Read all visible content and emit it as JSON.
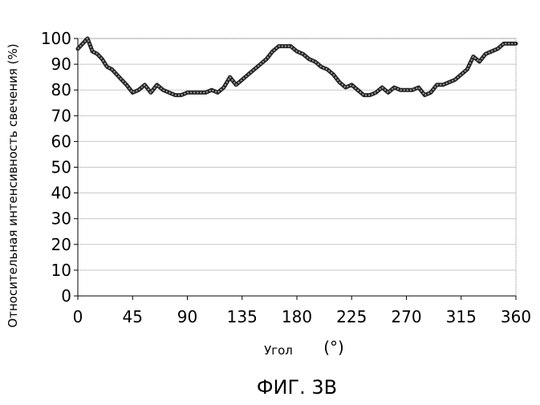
{
  "chart_data": {
    "type": "line",
    "ylabel": "Относительная интенсивность свечения (%)",
    "xlabel": "Угол",
    "xunit": "(°)",
    "caption": "ФИГ. 3B",
    "xlim": [
      0,
      360
    ],
    "ylim": [
      0,
      100
    ],
    "xticks": [
      "0",
      "45",
      "90",
      "135",
      "180",
      "225",
      "270",
      "315",
      "360"
    ],
    "yticks": [
      "0",
      "10",
      "20",
      "30",
      "40",
      "50",
      "60",
      "70",
      "80",
      "90",
      "100"
    ],
    "grid": true,
    "series": [
      {
        "x": [
          0,
          4,
          8,
          12,
          16,
          20,
          24,
          28,
          32,
          36,
          40,
          45,
          50,
          55,
          60,
          65,
          70,
          75,
          80,
          85,
          90,
          95,
          100,
          105,
          110,
          115,
          120,
          125,
          130,
          135,
          140,
          145,
          150,
          155,
          160,
          165,
          170,
          175,
          180,
          185,
          190,
          195,
          200,
          205,
          210,
          215,
          220,
          225,
          230,
          235,
          240,
          245,
          250,
          255,
          260,
          265,
          270,
          275,
          280,
          285,
          290,
          295,
          300,
          305,
          310,
          315,
          320,
          325,
          330,
          335,
          340,
          345,
          350,
          355,
          360
        ],
        "y": [
          96,
          98,
          100,
          95,
          94,
          92,
          89,
          88,
          86,
          84,
          82,
          79,
          80,
          82,
          79,
          82,
          80,
          79,
          78,
          78,
          79,
          79,
          79,
          79,
          80,
          79,
          81,
          85,
          82,
          84,
          86,
          88,
          90,
          92,
          95,
          97,
          97,
          97,
          95,
          94,
          92,
          91,
          89,
          88,
          86,
          83,
          81,
          82,
          80,
          78,
          78,
          79,
          81,
          79,
          81,
          80,
          80,
          80,
          81,
          78,
          79,
          82,
          82,
          83,
          84,
          86,
          88,
          93,
          91,
          94,
          95,
          96,
          98,
          98,
          98
        ]
      }
    ]
  }
}
